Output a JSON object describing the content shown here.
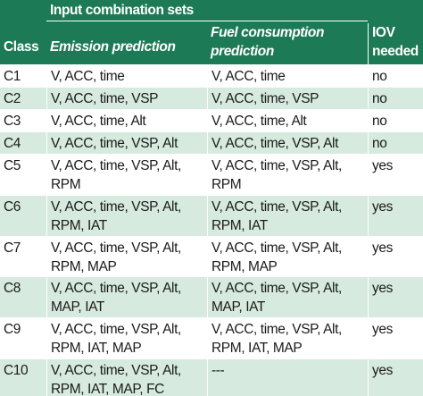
{
  "header": {
    "group": "Input combination sets",
    "columns": [
      [
        "Class"
      ],
      [
        "Emission prediction"
      ],
      [
        "Fuel consumption",
        "prediction"
      ],
      [
        "IOV",
        "needed"
      ]
    ]
  },
  "rows": [
    [
      [
        "C1"
      ],
      [
        "V, ACC, time"
      ],
      [
        "V, ACC, time"
      ],
      [
        "no"
      ]
    ],
    [
      [
        "C2"
      ],
      [
        "V, ACC, time, VSP"
      ],
      [
        "V, ACC, time, VSP"
      ],
      [
        "no"
      ]
    ],
    [
      [
        "C3"
      ],
      [
        "V, ACC, time, Alt"
      ],
      [
        "V, ACC, time, Alt"
      ],
      [
        "no"
      ]
    ],
    [
      [
        "C4"
      ],
      [
        "V, ACC, time, VSP, Alt"
      ],
      [
        "V, ACC, time, VSP, Alt"
      ],
      [
        "no"
      ]
    ],
    [
      [
        "C5"
      ],
      [
        "V, ACC, time, VSP, Alt,",
        "RPM"
      ],
      [
        "V, ACC, time, VSP, Alt,",
        "RPM"
      ],
      [
        "yes"
      ]
    ],
    [
      [
        "C6"
      ],
      [
        "V, ACC, time, VSP, Alt,",
        "RPM, IAT"
      ],
      [
        "V, ACC, time, VSP, Alt,",
        "RPM, IAT"
      ],
      [
        "yes"
      ]
    ],
    [
      [
        "C7"
      ],
      [
        "V, ACC, time, VSP, Alt,",
        "RPM, MAP"
      ],
      [
        "V, ACC, time, VSP, Alt,",
        "RPM, MAP"
      ],
      [
        "yes"
      ]
    ],
    [
      [
        "C8"
      ],
      [
        "V, ACC, time, VSP, Alt,",
        "MAP, IAT"
      ],
      [
        "V, ACC, time, VSP, Alt,",
        "MAP, IAT"
      ],
      [
        "yes"
      ]
    ],
    [
      [
        "C9"
      ],
      [
        "V, ACC, time, VSP, Alt,",
        "RPM, IAT, MAP"
      ],
      [
        "V, ACC, time, VSP, Alt,",
        "RPM, IAT, MAP"
      ],
      [
        "yes"
      ]
    ],
    [
      [
        "C10"
      ],
      [
        "V, ACC, time, VSP, Alt,",
        "RPM, IAT, MAP, FC"
      ],
      [
        "---"
      ],
      [
        "yes"
      ]
    ]
  ]
}
